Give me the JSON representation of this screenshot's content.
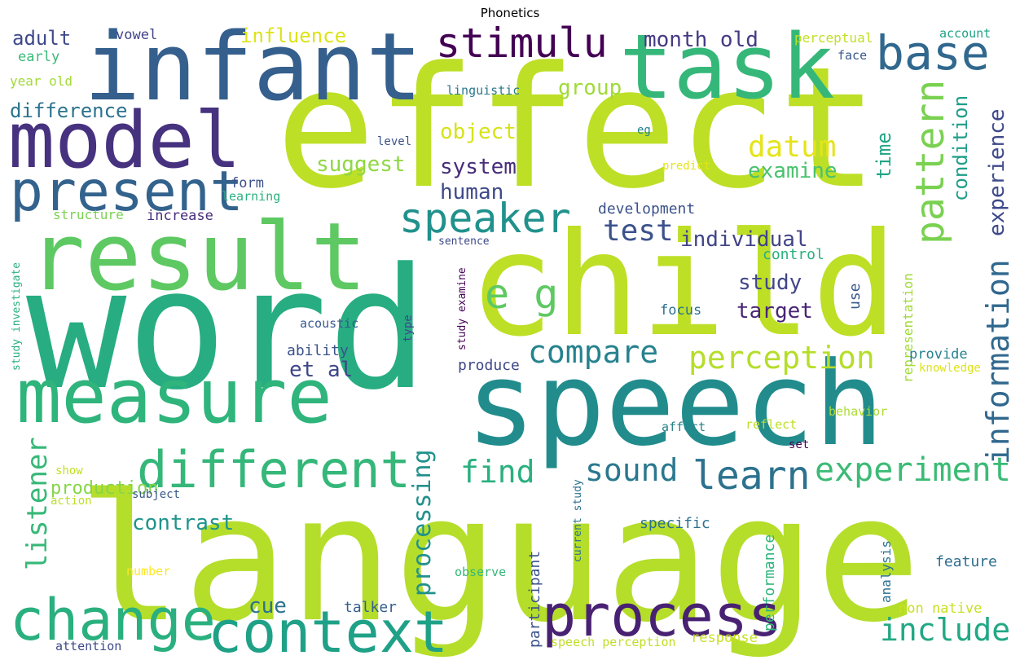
{
  "title": "Phonetics",
  "words": [
    {
      "text": "word",
      "color": "#27ad81"
    },
    {
      "text": "language",
      "color": "#b5de2b"
    },
    {
      "text": "effect",
      "color": "#bddf26"
    },
    {
      "text": "child",
      "color": "#bddf26"
    },
    {
      "text": "speech",
      "color": "#228c8d"
    },
    {
      "text": "infant",
      "color": "#355f8d"
    },
    {
      "text": "result",
      "color": "#5ec962"
    },
    {
      "text": "measure",
      "color": "#2fb47c"
    },
    {
      "text": "task",
      "color": "#35b779"
    },
    {
      "text": "model",
      "color": "#46327e"
    },
    {
      "text": "context",
      "color": "#1fa187"
    },
    {
      "text": "process",
      "color": "#482173"
    },
    {
      "text": "change",
      "color": "#2ab07f"
    },
    {
      "text": "present",
      "color": "#33638d"
    },
    {
      "text": "different",
      "color": "#35b779"
    },
    {
      "text": "stimulu",
      "color": "#440154"
    },
    {
      "text": "base",
      "color": "#31688e"
    },
    {
      "text": "speaker",
      "color": "#21918c"
    },
    {
      "text": "e g",
      "color": "#5ec962"
    },
    {
      "text": "pattern",
      "color": "#7ad151"
    },
    {
      "text": "information",
      "color": "#31688e"
    },
    {
      "text": "learn",
      "color": "#2c728e"
    },
    {
      "text": "experiment",
      "color": "#3bbb75"
    },
    {
      "text": "compare",
      "color": "#26828e"
    },
    {
      "text": "perception",
      "color": "#b5de2b"
    },
    {
      "text": "include",
      "color": "#22a884"
    },
    {
      "text": "datum",
      "color": "#e5e419"
    },
    {
      "text": "test",
      "color": "#3b528b"
    },
    {
      "text": "sound",
      "color": "#2a788e"
    },
    {
      "text": "find",
      "color": "#2ab07f"
    },
    {
      "text": "listener",
      "color": "#37b878"
    },
    {
      "text": "processing",
      "color": "#21918c"
    },
    {
      "text": "experience",
      "color": "#3e4989"
    },
    {
      "text": "condition",
      "color": "#1f9e89"
    },
    {
      "text": "time",
      "color": "#20a486"
    },
    {
      "text": "month old",
      "color": "#443a83"
    },
    {
      "text": "object",
      "color": "#d8e219"
    },
    {
      "text": "group",
      "color": "#a0da39"
    },
    {
      "text": "individual",
      "color": "#414487"
    },
    {
      "text": "system",
      "color": "#472d7b"
    },
    {
      "text": "suggest",
      "color": "#8fd744"
    },
    {
      "text": "examine",
      "color": "#4ac16d"
    },
    {
      "text": "human",
      "color": "#3e4989"
    },
    {
      "text": "study",
      "color": "#404688"
    },
    {
      "text": "target",
      "color": "#482576"
    },
    {
      "text": "contrast",
      "color": "#1f948c"
    },
    {
      "text": "cue",
      "color": "#2c728e"
    },
    {
      "text": "et al",
      "color": "#3f4788"
    },
    {
      "text": "difference",
      "color": "#2c738e"
    },
    {
      "text": "adult",
      "color": "#3e4989"
    },
    {
      "text": "influence",
      "color": "#dde318"
    },
    {
      "text": "participant",
      "color": "#3b528b"
    },
    {
      "text": "performance",
      "color": "#2fb47c"
    },
    {
      "text": "use",
      "color": "#38598c"
    },
    {
      "text": "production",
      "color": "#86d549"
    },
    {
      "text": "representation",
      "color": "#a2da37"
    },
    {
      "text": "specific",
      "color": "#2d708e"
    },
    {
      "text": "talker",
      "color": "#355f8d"
    },
    {
      "text": "ability",
      "color": "#3b528b"
    },
    {
      "text": "analysis",
      "color": "#2c728e"
    },
    {
      "text": "feature",
      "color": "#2e6e8e"
    },
    {
      "text": "development",
      "color": "#3b528b"
    },
    {
      "text": "non native",
      "color": "#c8e020"
    },
    {
      "text": "response",
      "color": "#c8e020"
    },
    {
      "text": "control",
      "color": "#2ab07f"
    },
    {
      "text": "produce",
      "color": "#3e4989"
    },
    {
      "text": "focus",
      "color": "#2d708e"
    },
    {
      "text": "provide",
      "color": "#26828e"
    },
    {
      "text": "current study",
      "color": "#2c728e"
    },
    {
      "text": "vowel",
      "color": "#414487"
    },
    {
      "text": "increase",
      "color": "#472d7b"
    },
    {
      "text": "early",
      "color": "#38b977"
    },
    {
      "text": "year old",
      "color": "#a2da37"
    },
    {
      "text": "structure",
      "color": "#7ad151"
    },
    {
      "text": "form",
      "color": "#3b528b"
    },
    {
      "text": "acoustic",
      "color": "#38598c"
    },
    {
      "text": "linguistic",
      "color": "#2a788e"
    },
    {
      "text": "perceptual",
      "color": "#c0df25"
    },
    {
      "text": "account",
      "color": "#20a386"
    },
    {
      "text": "face",
      "color": "#38598c"
    },
    {
      "text": "observe",
      "color": "#35b779"
    },
    {
      "text": "type",
      "color": "#3e4989"
    },
    {
      "text": "study examine",
      "color": "#440154"
    },
    {
      "text": "speech perception",
      "color": "#c0df25"
    },
    {
      "text": "attention",
      "color": "#3e4989"
    },
    {
      "text": "study investigate",
      "color": "#29af7f"
    },
    {
      "text": "number",
      "color": "#fde725"
    },
    {
      "text": "show",
      "color": "#c2df23"
    },
    {
      "text": "action",
      "color": "#bddf26"
    },
    {
      "text": "subject",
      "color": "#38598c"
    },
    {
      "text": "affect",
      "color": "#26828e"
    },
    {
      "text": "reflect",
      "color": "#bddf26"
    },
    {
      "text": "set",
      "color": "#440154"
    },
    {
      "text": "behavior",
      "color": "#aadc32"
    },
    {
      "text": "knowledge",
      "color": "#dde318"
    },
    {
      "text": "learning",
      "color": "#2ab07f"
    },
    {
      "text": "level",
      "color": "#3b528b"
    },
    {
      "text": "eg",
      "color": "#26828e"
    },
    {
      "text": "predict",
      "color": "#e5e419"
    },
    {
      "text": "sentence",
      "color": "#3e4989"
    }
  ]
}
